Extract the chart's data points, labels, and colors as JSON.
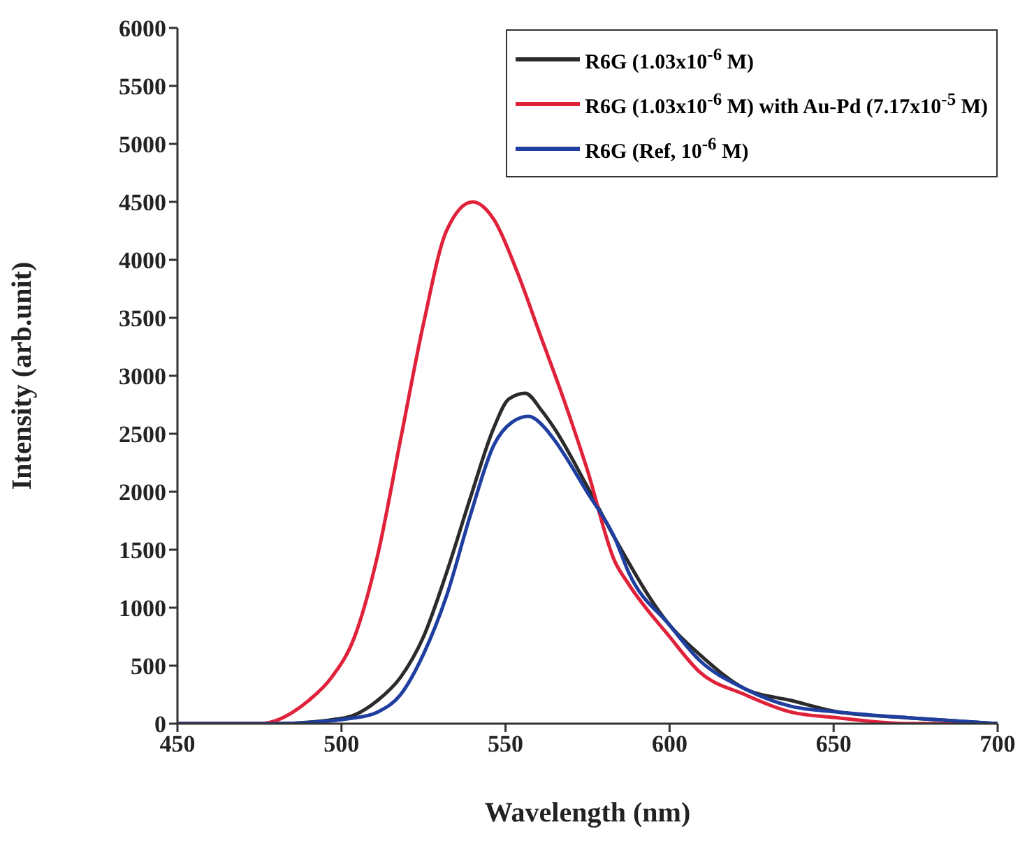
{
  "chart_data": {
    "type": "line",
    "xlabel": "Wavelength (nm)",
    "ylabel": "Intensity (arb.unit)",
    "xlim": [
      450,
      700
    ],
    "xticks": [
      450,
      500,
      550,
      600,
      650,
      700
    ],
    "ylim": [
      0,
      6000
    ],
    "yticks": [
      0,
      500,
      1000,
      1500,
      2000,
      2500,
      3000,
      3500,
      4000,
      4500,
      5000,
      5500,
      6000
    ],
    "legend": "top right",
    "line_style": "solid",
    "marker": "none",
    "series": [
      {
        "name": "R6G (1.03x10$^{-6}$ M)",
        "color": "#2b2b2b",
        "x": [
          450,
          480,
          501,
          511,
          518,
          525,
          532,
          539.3,
          546.4,
          551,
          556,
          561,
          564.8,
          574.8,
          583.3,
          600,
          609,
          623,
          637,
          651.5,
          673,
          700
        ],
        "values": [
          0,
          0,
          50,
          200,
          400,
          750,
          1300,
          1950,
          2550,
          2800,
          2850,
          2700,
          2550,
          2050,
          1600,
          850,
          600,
          300,
          200,
          100,
          50,
          0
        ]
      },
      {
        "name": "R6G (1.03x10$^{-6}$ M) with Au-Pd (7.17x10$^{-5}$ M)",
        "color": "#e0213a",
        "x": [
          450,
          475,
          490,
          497,
          504,
          511,
          518,
          525,
          532,
          540,
          546.4,
          553.5,
          560.6,
          567.7,
          574.8,
          583.3,
          587.6,
          600,
          609,
          623,
          637,
          651.5,
          673,
          700
        ],
        "values": [
          0,
          0,
          200,
          400,
          750,
          1450,
          2450,
          3450,
          4250,
          4500,
          4350,
          3900,
          3350,
          2800,
          2200,
          1400,
          1200,
          750,
          450,
          250,
          100,
          50,
          0,
          0
        ]
      },
      {
        "name": "R6G (Ref, 10$^{-6}$ M)",
        "color": "#1f3fa0",
        "x": [
          450,
          480,
          504,
          511,
          518,
          525,
          532,
          539.3,
          546.4,
          552,
          557,
          562,
          564.8,
          574.8,
          583.3,
          587.6,
          600,
          609,
          623,
          637,
          651.5,
          673,
          700
        ],
        "values": [
          0,
          0,
          50,
          100,
          250,
          600,
          1100,
          1800,
          2400,
          2600,
          2650,
          2550,
          2450,
          2000,
          1600,
          1300,
          850,
          550,
          300,
          150,
          100,
          50,
          0
        ]
      }
    ]
  }
}
